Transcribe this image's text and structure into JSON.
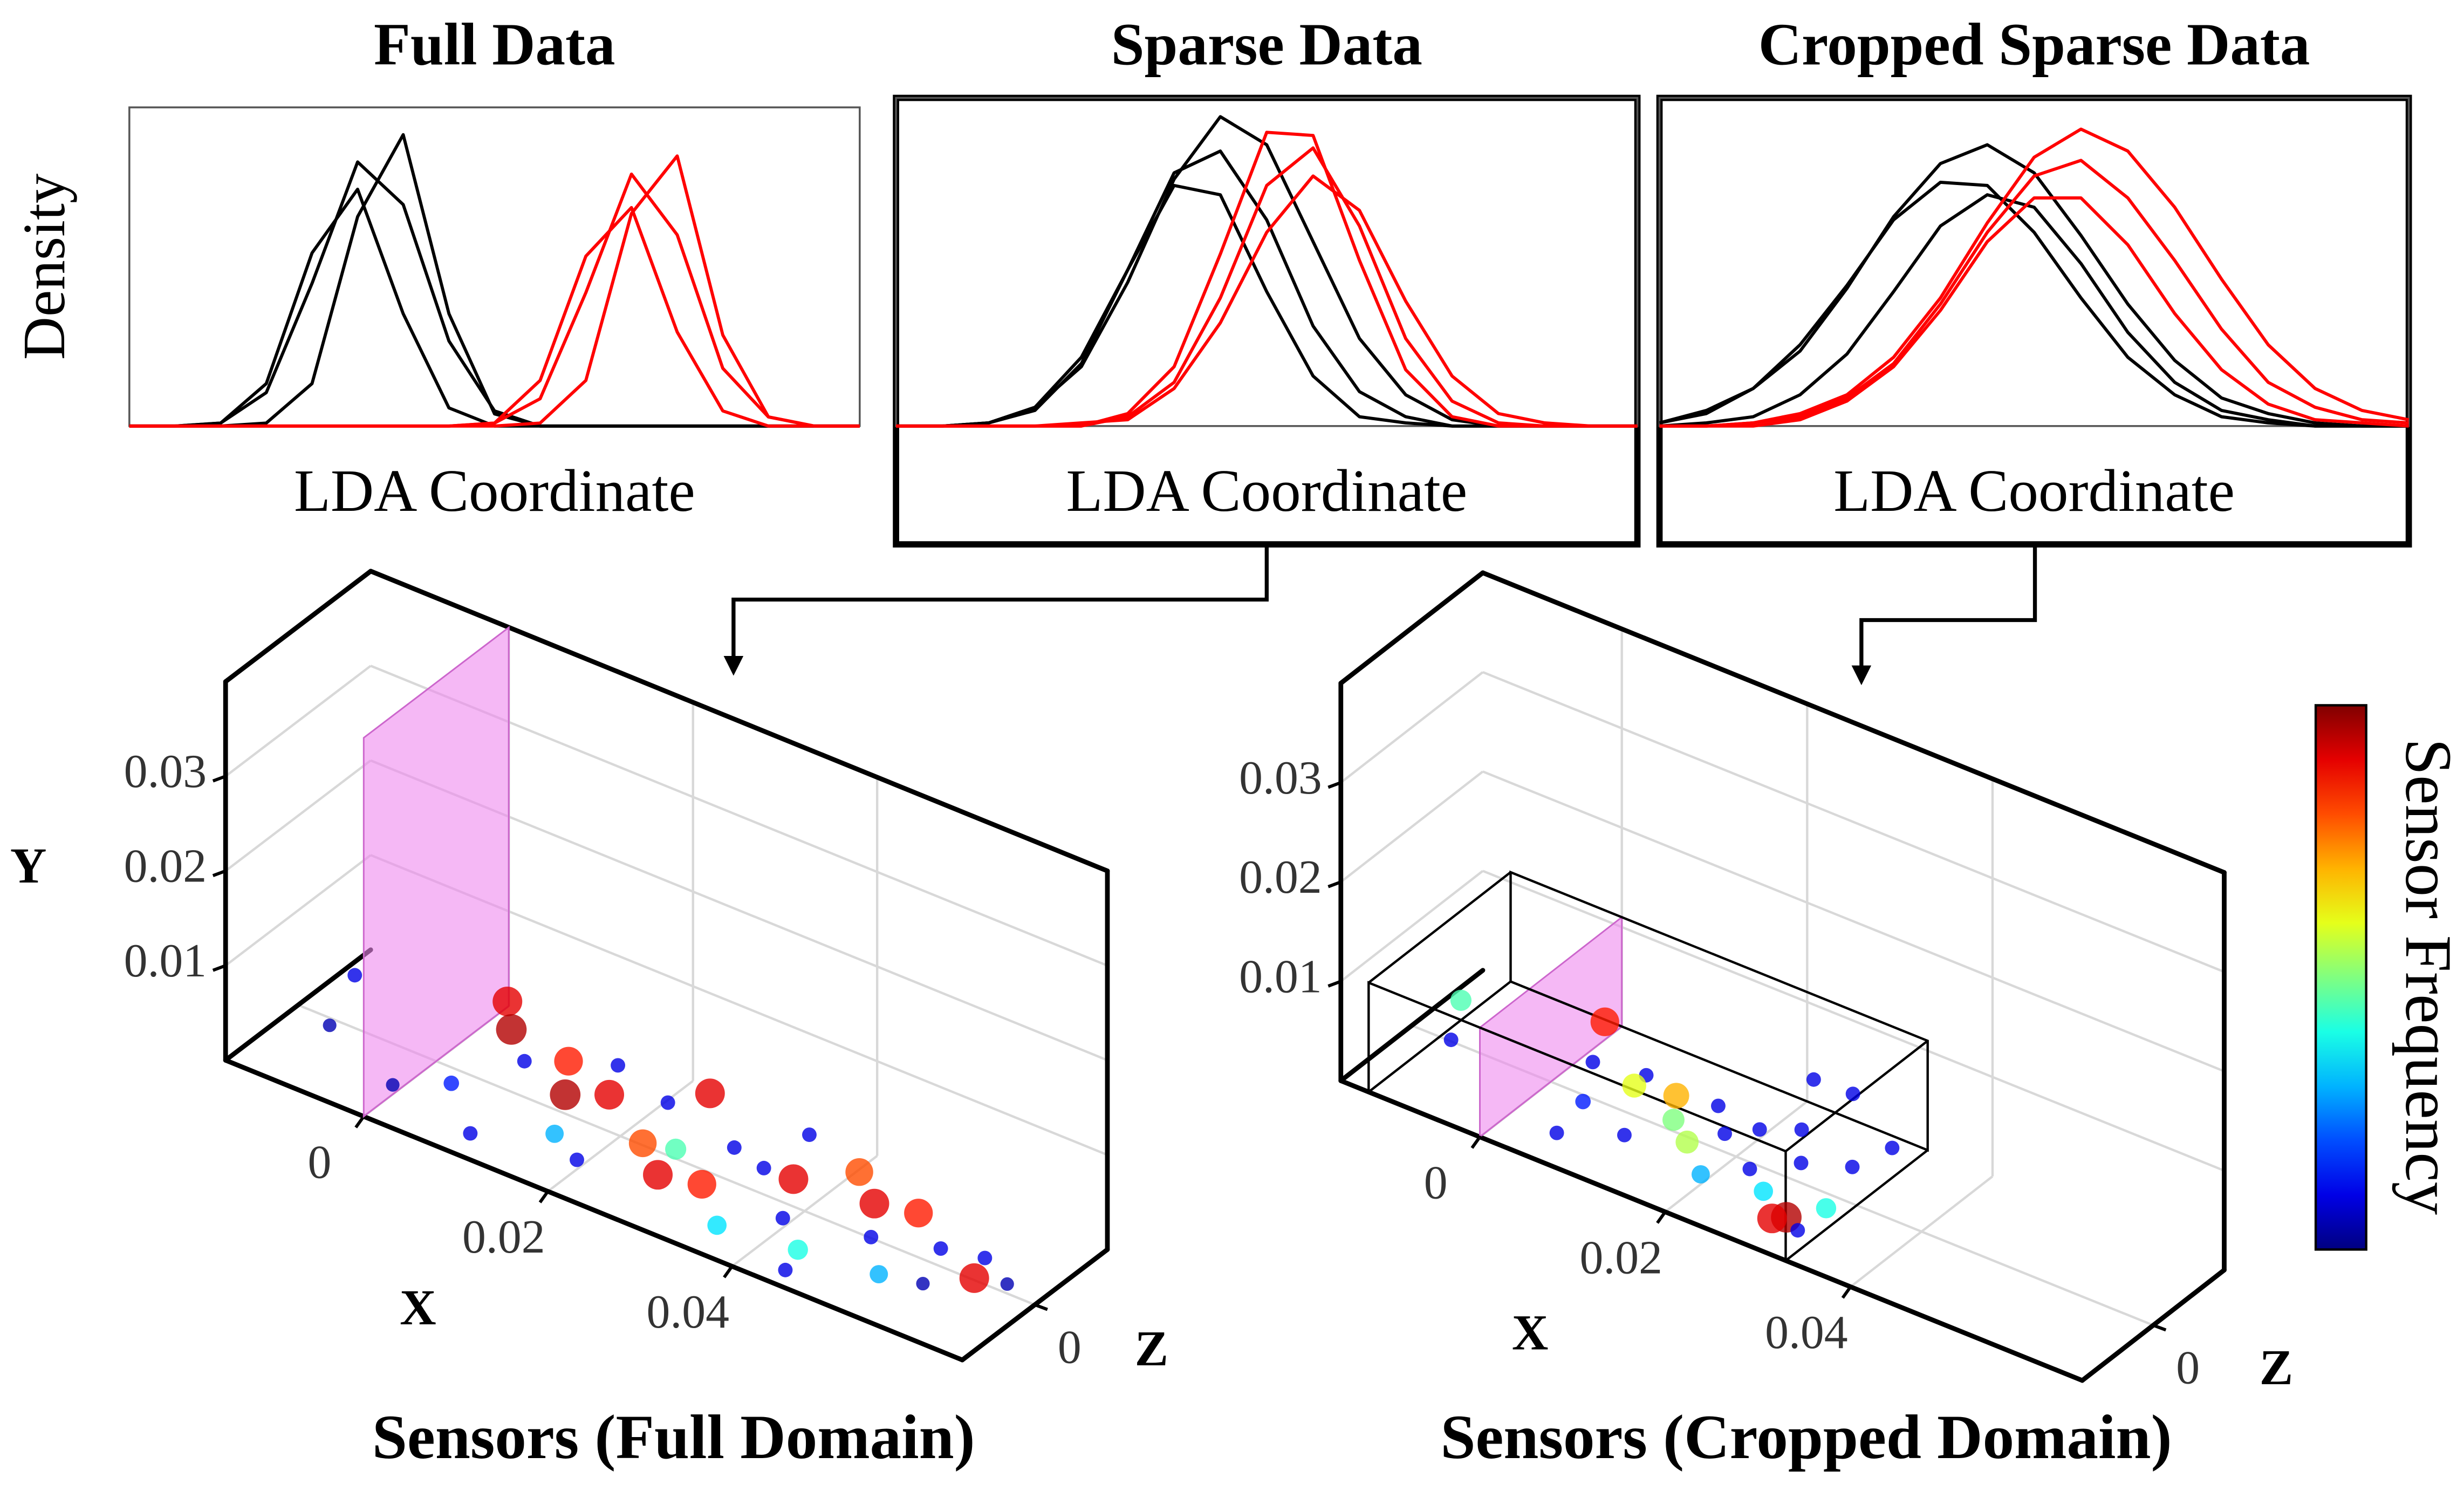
{
  "chart_data": [
    {
      "type": "line",
      "title": "Full Data",
      "x_label": "LDA Coordinate",
      "y_label": "Density",
      "x": [
        0,
        0.0625,
        0.125,
        0.1875,
        0.25,
        0.3125,
        0.375,
        0.4375,
        0.5,
        0.5625,
        0.625,
        0.6875,
        0.75,
        0.8125,
        0.875,
        0.9375,
        1
      ],
      "xlim": [
        0,
        1
      ],
      "ylim": [
        0,
        1.05
      ],
      "series": [
        {
          "color": "#000000",
          "values": [
            0,
            0,
            0.01,
            0.11,
            0.47,
            0.87,
            0.73,
            0.28,
            0.05,
            0,
            0,
            0,
            0,
            0,
            0,
            0,
            0
          ]
        },
        {
          "color": "#000000",
          "values": [
            0,
            0,
            0.01,
            0.14,
            0.57,
            0.78,
            0.37,
            0.06,
            0,
            0,
            0,
            0,
            0,
            0,
            0,
            0,
            0
          ]
        },
        {
          "color": "#000000",
          "values": [
            0,
            0,
            0,
            0.01,
            0.14,
            0.69,
            0.96,
            0.37,
            0.04,
            0,
            0,
            0,
            0,
            0,
            0,
            0,
            0
          ]
        },
        {
          "color": "#ff0000",
          "values": [
            0,
            0,
            0,
            0,
            0,
            0,
            0,
            0,
            0.01,
            0.09,
            0.44,
            0.83,
            0.63,
            0.19,
            0.03,
            0,
            0
          ]
        },
        {
          "color": "#ff0000",
          "values": [
            0,
            0,
            0,
            0,
            0,
            0,
            0,
            0,
            0.01,
            0.15,
            0.56,
            0.72,
            0.31,
            0.05,
            0,
            0,
            0
          ]
        },
        {
          "color": "#ff0000",
          "values": [
            0,
            0,
            0,
            0,
            0,
            0,
            0,
            0,
            0,
            0.01,
            0.15,
            0.7,
            0.89,
            0.3,
            0.03,
            0,
            0
          ]
        }
      ]
    },
    {
      "type": "line",
      "title": "Sparse Data",
      "x_label": "LDA Coordinate",
      "x": [
        0,
        0.0625,
        0.125,
        0.1875,
        0.25,
        0.3125,
        0.375,
        0.4375,
        0.5,
        0.5625,
        0.625,
        0.6875,
        0.75,
        0.8125,
        0.875,
        0.9375,
        1
      ],
      "xlim": [
        0,
        1
      ],
      "ylim": [
        0,
        1.05
      ],
      "series": [
        {
          "color": "#000000",
          "values": [
            0,
            0,
            0.01,
            0.06,
            0.22,
            0.5,
            0.81,
            0.88,
            0.66,
            0.32,
            0.11,
            0.03,
            0,
            0,
            0,
            0,
            0
          ]
        },
        {
          "color": "#000000",
          "values": [
            0,
            0,
            0.01,
            0.05,
            0.2,
            0.5,
            0.77,
            0.74,
            0.43,
            0.16,
            0.03,
            0.01,
            0,
            0,
            0,
            0,
            0
          ]
        },
        {
          "color": "#000000",
          "values": [
            0,
            0,
            0.01,
            0.06,
            0.19,
            0.46,
            0.79,
            0.99,
            0.9,
            0.59,
            0.28,
            0.1,
            0.02,
            0,
            0,
            0,
            0
          ]
        },
        {
          "color": "#ff0000",
          "values": [
            0,
            0,
            0,
            0,
            0,
            0.03,
            0.14,
            0.41,
            0.77,
            0.89,
            0.64,
            0.28,
            0.08,
            0.01,
            0,
            0,
            0
          ]
        },
        {
          "color": "#ff0000",
          "values": [
            0,
            0,
            0,
            0,
            0.01,
            0.02,
            0.12,
            0.33,
            0.62,
            0.8,
            0.69,
            0.4,
            0.16,
            0.04,
            0.01,
            0,
            0
          ]
        },
        {
          "color": "#ff0000",
          "values": [
            0,
            0,
            0,
            0,
            0,
            0.04,
            0.19,
            0.55,
            0.94,
            0.93,
            0.53,
            0.18,
            0.03,
            0,
            0,
            0,
            0
          ]
        }
      ]
    },
    {
      "type": "line",
      "title": "Cropped Sparse Data",
      "x_label": "LDA Coordinate",
      "x": [
        0,
        0.0625,
        0.125,
        0.1875,
        0.25,
        0.3125,
        0.375,
        0.4375,
        0.5,
        0.5625,
        0.625,
        0.6875,
        0.75,
        0.8125,
        0.875,
        0.9375,
        1
      ],
      "xlim": [
        0,
        1
      ],
      "ylim": [
        0,
        1.05
      ],
      "series": [
        {
          "color": "#000000",
          "values": [
            0.01,
            0.04,
            0.12,
            0.26,
            0.45,
            0.66,
            0.78,
            0.77,
            0.62,
            0.41,
            0.22,
            0.1,
            0.03,
            0.01,
            0,
            0,
            0
          ]
        },
        {
          "color": "#000000",
          "values": [
            0.01,
            0.05,
            0.12,
            0.24,
            0.44,
            0.67,
            0.84,
            0.9,
            0.81,
            0.61,
            0.39,
            0.21,
            0.09,
            0.04,
            0.01,
            0,
            0
          ]
        },
        {
          "color": "#000000",
          "values": [
            0,
            0.01,
            0.03,
            0.1,
            0.23,
            0.43,
            0.64,
            0.74,
            0.7,
            0.52,
            0.3,
            0.14,
            0.05,
            0.02,
            0,
            0,
            0
          ]
        },
        {
          "color": "#ff0000",
          "values": [
            0,
            0,
            0.01,
            0.03,
            0.09,
            0.2,
            0.39,
            0.62,
            0.8,
            0.85,
            0.73,
            0.53,
            0.31,
            0.14,
            0.06,
            0.02,
            0.01
          ]
        },
        {
          "color": "#ff0000",
          "values": [
            0,
            0,
            0.01,
            0.04,
            0.1,
            0.22,
            0.41,
            0.65,
            0.86,
            0.95,
            0.88,
            0.7,
            0.47,
            0.26,
            0.12,
            0.05,
            0.02
          ]
        },
        {
          "color": "#ff0000",
          "values": [
            0,
            0,
            0,
            0.02,
            0.08,
            0.19,
            0.37,
            0.59,
            0.73,
            0.73,
            0.58,
            0.36,
            0.18,
            0.07,
            0.02,
            0.01,
            0
          ]
        }
      ]
    },
    {
      "type": "scatter3d",
      "title": "Sensors (Full Domain)",
      "x_label": "X",
      "y_label": "Y",
      "z_label": "Z",
      "xlim": [
        -0.015,
        0.065
      ],
      "ylim": [
        0,
        0.04
      ],
      "zlim": [
        -0.01,
        0.01
      ],
      "xticks": [
        0,
        0.02,
        0.04
      ],
      "yticks": [
        0.01,
        0.02,
        0.03
      ],
      "zticks": [
        0
      ],
      "colormap": "jet",
      "x": [
        -0.012,
        -0.01,
        0.003,
        0.005,
        0.008,
        0.004,
        0.012,
        0.014,
        0.016,
        0.018,
        0.02,
        0.022,
        0.024,
        0.026,
        0.028,
        0.03,
        0.032,
        0.034,
        0.036,
        0.038,
        0.04,
        0.042,
        0.044,
        0.046,
        0.048,
        0.05,
        0.052,
        0.054,
        0.056,
        0.058,
        0.06,
        0.062,
        0.01,
        0,
        0.035,
        0.045,
        0.025,
        0.015
      ],
      "y": [
        0.002,
        0.001,
        0.004,
        0.003,
        0.002,
        0.001,
        0.003,
        0.002,
        0.001,
        0.003,
        0.001,
        0.002,
        0.002,
        0.001,
        0.002,
        0.001,
        0.002,
        0.001,
        0.001,
        0.002,
        0.001,
        0.002,
        0.001,
        0.002,
        0.001,
        0.002,
        0.001,
        0.001,
        0.001,
        0.001,
        0.002,
        0.001,
        0.001,
        0.001,
        0.002,
        0.001,
        0.003,
        0.002
      ],
      "z": [
        0.004,
        -0.002,
        0.006,
        0.004,
        0.002,
        -0.003,
        0.003,
        0,
        -0.004,
        0.001,
        -0.006,
        0.004,
        -0.002,
        0,
        -0.005,
        0.003,
        -0.004,
        0.002,
        -0.007,
        0.001,
        -0.003,
        0.005,
        -0.006,
        0.002,
        -0.001,
        0.003,
        -0.005,
        0.001,
        -0.004,
        0.002,
        -0.002,
        0,
        -0.008,
        -0.006,
        0.007,
        -0.009,
        0.006,
        0.006
      ],
      "frequency": [
        0.1,
        0.05,
        0.9,
        0.95,
        0.1,
        0.15,
        0.85,
        0.95,
        0.3,
        0.9,
        0.1,
        0.1,
        0.8,
        0.45,
        0.9,
        0.1,
        0.85,
        0.1,
        0.35,
        0.9,
        0.1,
        0.8,
        0.4,
        0.9,
        0.1,
        0.85,
        0.3,
        0.1,
        0.05,
        0.1,
        0.9,
        0.05,
        0.1,
        0.05,
        0.1,
        0.1,
        0.9,
        0.1
      ]
    },
    {
      "type": "scatter3d",
      "title": "Sensors (Cropped Domain)",
      "x_label": "X",
      "z_label": "Z",
      "xlim": [
        -0.015,
        0.065
      ],
      "ylim": [
        0,
        0.04
      ],
      "zlim": [
        -0.01,
        0.01
      ],
      "xticks": [
        0,
        0.02,
        0.04
      ],
      "yticks": [
        0.01,
        0.02,
        0.03
      ],
      "zticks": [
        0
      ],
      "colormap": "jet",
      "colorbar_label": "Sensor Frequency",
      "x": [
        -0.012,
        -0.01,
        0.002,
        0.003,
        0.005,
        0.008,
        0.009,
        0.011,
        0.012,
        0.014,
        0.015,
        0.017,
        0.018,
        0.02,
        0.021,
        0.023,
        0.024,
        0.026,
        0.027,
        0.03,
        0.031,
        0.032,
        0.033,
        0.023,
        0.006,
        0.03,
        0.028,
        0.032
      ],
      "y": [
        0.002,
        0.001,
        0.004,
        0.002,
        0.001,
        0.002,
        0.003,
        0.001,
        0.002,
        0.002,
        0.001,
        0.002,
        0.001,
        0.001,
        0.002,
        0.001,
        0.002,
        0.001,
        0.002,
        0.001,
        0.002,
        0.001,
        0.003,
        0.005,
        0.001,
        0.002,
        0.006,
        0.001
      ],
      "z": [
        0.003,
        -0.001,
        0.005,
        0.002,
        -0.002,
        0.003,
        0,
        -0.004,
        0.002,
        -0.001,
        0.004,
        -0.003,
        0.001,
        -0.005,
        0.002,
        -0.002,
        0.004,
        -0.004,
        0,
        -0.006,
        0.002,
        -0.003,
        0.005,
        0.007,
        -0.007,
        -0.008,
        0.006,
        -0.007
      ],
      "frequency": [
        0.45,
        0.1,
        0.85,
        0.1,
        0.15,
        0.1,
        0.6,
        0.1,
        0.7,
        0.5,
        0.1,
        0.55,
        0.1,
        0.3,
        0.1,
        0.1,
        0.1,
        0.35,
        0.1,
        0.95,
        0.1,
        0.4,
        0.1,
        0.1,
        0.1,
        0.9,
        0.1,
        0.1
      ]
    }
  ]
}
